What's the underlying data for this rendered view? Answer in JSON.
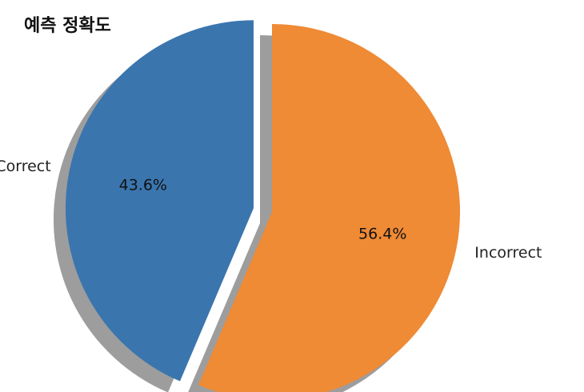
{
  "title": "예측 정확도",
  "chart_data": {
    "type": "pie",
    "title": "예측 정확도",
    "categories": [
      "Correct",
      "Incorrect"
    ],
    "values": [
      43.6,
      56.4
    ],
    "labels": [
      "43.6%",
      "56.4%"
    ],
    "colors": [
      "#3a75ae",
      "#ef8a35"
    ],
    "shadow": true,
    "explode": [
      0.1,
      0
    ]
  }
}
